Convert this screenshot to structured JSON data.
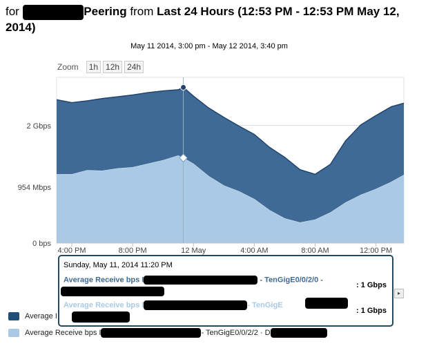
{
  "header": {
    "title_prefix": "for I",
    "title_mid": "Peering",
    "title_from": " from ",
    "title_range": "Last 24 Hours (12:53 PM - 12:53 PM May 12, 2014)"
  },
  "zoom": {
    "label": "Zoom",
    "options": [
      "1h",
      "12h",
      "24h"
    ]
  },
  "colors": {
    "series_dark": "#3e6a95",
    "series_light": "#a9c9e4",
    "line_dark": "#23446a",
    "tooltip_border": "#23495e"
  },
  "chart_data": {
    "type": "area",
    "subtitle": "May 11 2014, 3:00 pm - May 12 2014, 3:40 pm",
    "x_start": "2014-05-11 15:00",
    "x_end": "2014-05-12 13:50",
    "x_ticks": [
      {
        "label": "4:00 PM",
        "time": "2014-05-11 16:00"
      },
      {
        "label": "8:00 PM",
        "time": "2014-05-11 20:00"
      },
      {
        "label": "12 May",
        "time": "2014-05-12 00:00"
      },
      {
        "label": "4:00 AM",
        "time": "2014-05-12 04:00"
      },
      {
        "label": "8:00 AM",
        "time": "2014-05-12 08:00"
      },
      {
        "label": "12:00 PM",
        "time": "2014-05-12 12:00"
      }
    ],
    "y_ticks": [
      {
        "label": "0 bps",
        "value": 0
      },
      {
        "label": "954 Mbps",
        "value": 954
      },
      {
        "label": "2 Gbps",
        "value": 2000
      }
    ],
    "y_unit": "Mbps",
    "ylim": [
      0,
      2820
    ],
    "stacked": true,
    "x": [
      "2014-05-11 15:00",
      "2014-05-11 16:00",
      "2014-05-11 17:00",
      "2014-05-11 18:00",
      "2014-05-11 19:00",
      "2014-05-11 20:00",
      "2014-05-11 21:00",
      "2014-05-11 22:00",
      "2014-05-11 23:00",
      "2014-05-11 23:20",
      "2014-05-12 00:00",
      "2014-05-12 01:00",
      "2014-05-12 02:00",
      "2014-05-12 03:00",
      "2014-05-12 04:00",
      "2014-05-12 05:00",
      "2014-05-12 06:00",
      "2014-05-12 07:00",
      "2014-05-12 08:00",
      "2014-05-12 09:00",
      "2014-05-12 10:00",
      "2014-05-12 11:00",
      "2014-05-12 12:00",
      "2014-05-12 13:00",
      "2014-05-12 13:50"
    ],
    "series": [
      {
        "values": [
          1170,
          1170,
          1240,
          1230,
          1270,
          1290,
          1350,
          1410,
          1490,
          1450,
          1350,
          1140,
          980,
          880,
          750,
          560,
          420,
          350,
          400,
          520,
          690,
          820,
          920,
          1040,
          1160
        ]
      },
      {
        "values": [
          1270,
          1220,
          1180,
          1230,
          1220,
          1230,
          1210,
          1180,
          1120,
          1200,
          1150,
          1160,
          1160,
          1110,
          1100,
          1070,
          1040,
          900,
          770,
          820,
          1050,
          1190,
          1250,
          1280,
          1220
        ]
      }
    ],
    "crosshair_time": "2014-05-11 23:20"
  },
  "tooltip": {
    "date": "Sunday, May 11, 2014 11:20 PM",
    "row1_label": "Average Receive bps I",
    "row1_suffix": " - TenGigE0/0/2/0 -",
    "row1_value": ": 1 Gbps",
    "row2_label": "Average Receive bps I",
    "row2_suffix": "- TenGigE",
    "row2_value": ": 1 Gbps"
  },
  "legend": {
    "item1": "Average I",
    "item2_prefix": "Average Receive bps I",
    "item2_suffix": " - TenGigE0/0/2/2 · D"
  },
  "scroll": {
    "right_arrow": "▸"
  }
}
